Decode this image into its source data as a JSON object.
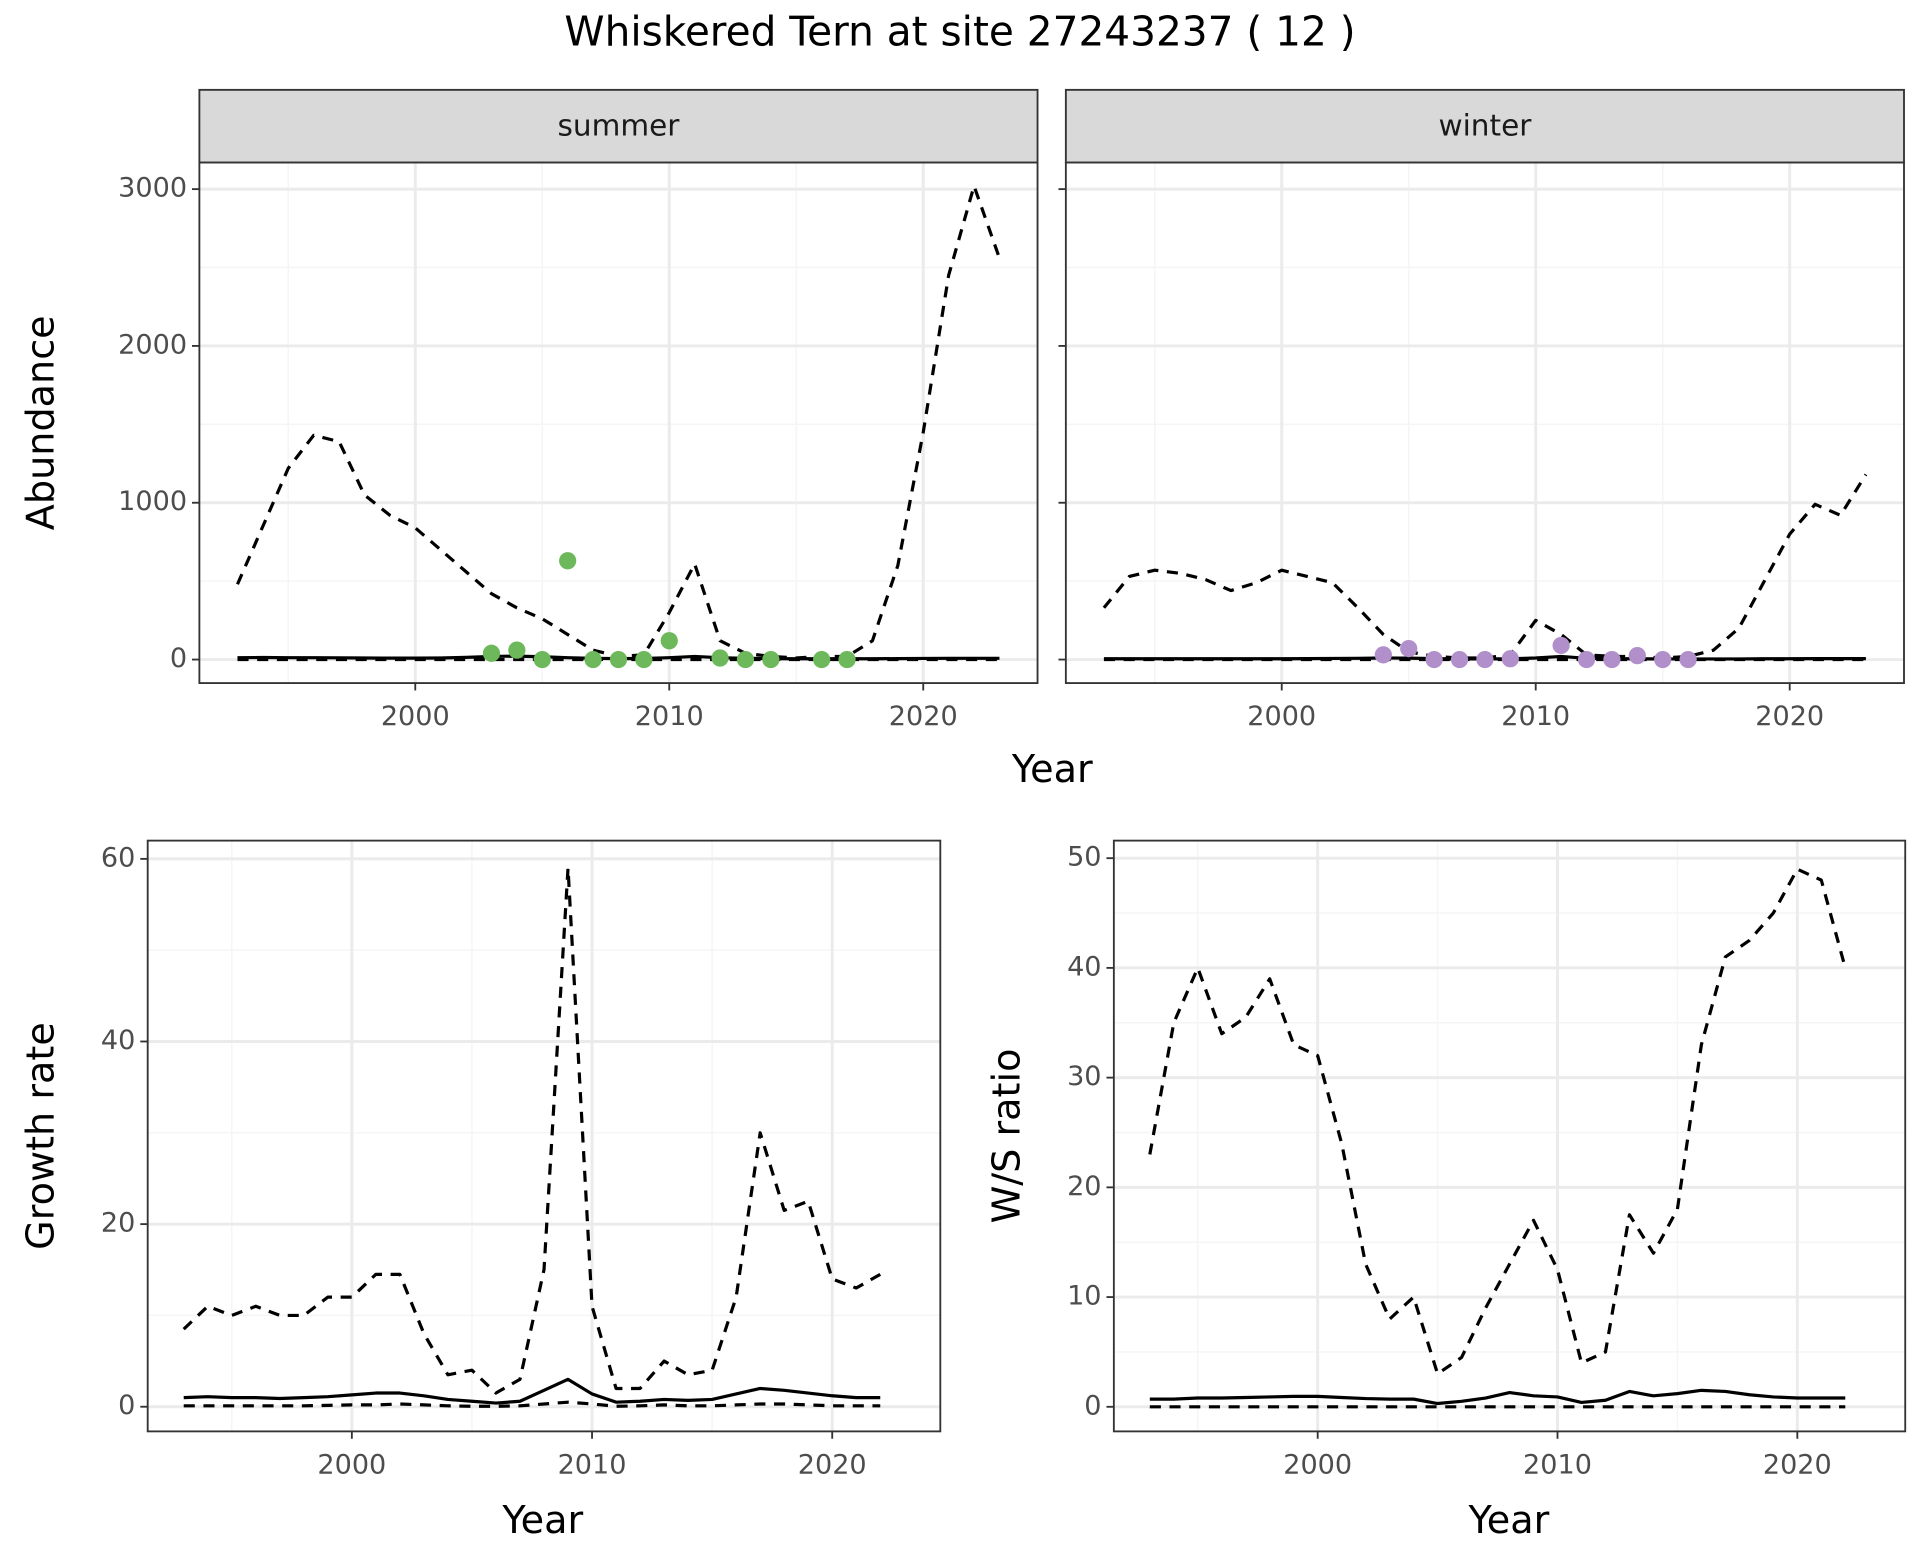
{
  "title": "Whiskered Tern at site 27243237 ( 12 )",
  "chart_data": [
    {
      "type": "line",
      "facet": "summer",
      "ylabel": "Abundance",
      "xlabel": "Year",
      "grid": true,
      "xlim": [
        1991.5,
        2024.5
      ],
      "xticks": [
        2000,
        2010,
        2020
      ],
      "ylim": [
        -150,
        3170
      ],
      "yticks": [
        0,
        1000,
        2000,
        3000
      ],
      "x": [
        1993,
        1994,
        1995,
        1996,
        1997,
        1998,
        1999,
        2000,
        2001,
        2002,
        2003,
        2004,
        2005,
        2006,
        2007,
        2008,
        2009,
        2010,
        2011,
        2012,
        2013,
        2014,
        2015,
        2016,
        2017,
        2018,
        2019,
        2020,
        2021,
        2022,
        2023
      ],
      "series": [
        {
          "color": "#000000",
          "dash": true,
          "values": [
            480,
            850,
            1220,
            1430,
            1390,
            1050,
            920,
            840,
            700,
            560,
            420,
            330,
            260,
            160,
            60,
            20,
            30,
            300,
            610,
            120,
            40,
            20,
            10,
            20,
            20,
            120,
            600,
            1450,
            2450,
            3020,
            2560
          ]
        },
        {
          "color": "#000000",
          "dash": false,
          "values": [
            12,
            13,
            12,
            12,
            11,
            10,
            9,
            9,
            10,
            14,
            20,
            22,
            18,
            12,
            8,
            6,
            7,
            12,
            20,
            12,
            8,
            6,
            5,
            5,
            5,
            5,
            6,
            7,
            8,
            8,
            8
          ]
        },
        {
          "color": "#000000",
          "dash": true,
          "values": [
            0,
            0,
            0,
            0,
            0,
            0,
            0,
            0,
            0,
            0,
            0,
            0,
            0,
            0,
            0,
            0,
            0,
            0,
            0,
            0,
            0,
            0,
            0,
            0,
            0,
            0,
            0,
            0,
            0,
            0,
            0
          ]
        },
        {
          "type": "scatter",
          "color": "#6cb85a",
          "values": [
            null,
            null,
            null,
            null,
            null,
            null,
            null,
            null,
            null,
            null,
            40,
            60,
            0,
            630,
            0,
            0,
            0,
            120,
            null,
            10,
            0,
            0,
            null,
            0,
            0,
            null,
            null,
            null,
            null,
            null,
            null
          ]
        }
      ]
    },
    {
      "type": "line",
      "facet": "winter",
      "ytick_labels": false,
      "grid": true,
      "xlim": [
        1991.5,
        2024.5
      ],
      "xticks": [
        2000,
        2010,
        2020
      ],
      "ylim": [
        -150,
        3170
      ],
      "yticks": [
        0,
        1000,
        2000,
        3000
      ],
      "x": [
        1993,
        1994,
        1995,
        1996,
        1997,
        1998,
        1999,
        2000,
        2001,
        2002,
        2003,
        2004,
        2005,
        2006,
        2007,
        2008,
        2009,
        2010,
        2011,
        2012,
        2013,
        2014,
        2015,
        2016,
        2017,
        2018,
        2019,
        2020,
        2021,
        2022,
        2023
      ],
      "series": [
        {
          "color": "#000000",
          "dash": true,
          "values": [
            330,
            530,
            570,
            550,
            510,
            440,
            490,
            570,
            530,
            490,
            330,
            160,
            50,
            20,
            10,
            10,
            30,
            250,
            160,
            30,
            20,
            20,
            10,
            20,
            60,
            200,
            500,
            800,
            990,
            920,
            1180
          ]
        },
        {
          "color": "#000000",
          "dash": false,
          "values": [
            5,
            5,
            5,
            5,
            5,
            5,
            5,
            5,
            6,
            7,
            8,
            10,
            9,
            6,
            4,
            4,
            5,
            10,
            20,
            8,
            5,
            5,
            4,
            4,
            4,
            4,
            5,
            5,
            6,
            6,
            6
          ]
        },
        {
          "color": "#000000",
          "dash": true,
          "values": [
            0,
            0,
            0,
            0,
            0,
            0,
            0,
            0,
            0,
            0,
            0,
            0,
            0,
            0,
            0,
            0,
            0,
            0,
            0,
            0,
            0,
            0,
            0,
            0,
            0,
            0,
            0,
            0,
            0,
            0,
            0
          ]
        },
        {
          "type": "scatter",
          "color": "#b08fca",
          "values": [
            null,
            null,
            null,
            null,
            null,
            null,
            null,
            null,
            null,
            null,
            null,
            30,
            70,
            0,
            0,
            0,
            5,
            null,
            90,
            0,
            0,
            25,
            0,
            0,
            null,
            null,
            null,
            null,
            null,
            null,
            null
          ]
        }
      ]
    },
    {
      "type": "line",
      "ylabel": "Growth rate",
      "xlabel": "Year",
      "grid": true,
      "xlim": [
        1991.5,
        2024.5
      ],
      "xticks": [
        2000,
        2010,
        2020
      ],
      "ylim": [
        -2.7,
        62
      ],
      "yticks": [
        0,
        20,
        40,
        60
      ],
      "x": [
        1993,
        1994,
        1995,
        1996,
        1997,
        1998,
        1999,
        2000,
        2001,
        2002,
        2003,
        2004,
        2005,
        2006,
        2007,
        2008,
        2009,
        2010,
        2011,
        2012,
        2013,
        2014,
        2015,
        2016,
        2017,
        2018,
        2019,
        2020,
        2021,
        2022
      ],
      "series": [
        {
          "color": "#000000",
          "dash": true,
          "values": [
            8.5,
            11,
            10,
            11,
            10,
            10,
            12,
            12,
            14.5,
            14.5,
            8,
            3.5,
            4,
            1.5,
            3,
            15,
            59,
            11,
            2,
            2,
            5,
            3.5,
            4,
            12,
            30,
            21.5,
            22.5,
            14,
            13,
            14.5
          ]
        },
        {
          "color": "#000000",
          "dash": false,
          "values": [
            1,
            1.1,
            1,
            1,
            0.9,
            1,
            1.1,
            1.3,
            1.5,
            1.5,
            1.2,
            0.8,
            0.6,
            0.4,
            0.6,
            1.8,
            3,
            1.4,
            0.5,
            0.6,
            0.8,
            0.7,
            0.8,
            1.4,
            2,
            1.8,
            1.5,
            1.2,
            1,
            1
          ]
        },
        {
          "color": "#000000",
          "dash": true,
          "values": [
            0.1,
            0.1,
            0.1,
            0.1,
            0.1,
            0.1,
            0.15,
            0.2,
            0.2,
            0.3,
            0.2,
            0.1,
            0.05,
            0.05,
            0.1,
            0.3,
            0.5,
            0.3,
            0.05,
            0.1,
            0.2,
            0.1,
            0.1,
            0.2,
            0.3,
            0.3,
            0.2,
            0.1,
            0.1,
            0.1
          ]
        }
      ]
    },
    {
      "type": "line",
      "ylabel": "W/S ratio",
      "xlabel": "Year",
      "grid": true,
      "xlim": [
        1991.5,
        2024.5
      ],
      "xticks": [
        2000,
        2010,
        2020
      ],
      "ylim": [
        -2.24,
        51.6
      ],
      "yticks": [
        0,
        10,
        20,
        30,
        40,
        50
      ],
      "x": [
        1993,
        1994,
        1995,
        1996,
        1997,
        1998,
        1999,
        2000,
        2001,
        2002,
        2003,
        2004,
        2005,
        2006,
        2007,
        2008,
        2009,
        2010,
        2011,
        2012,
        2013,
        2014,
        2015,
        2016,
        2017,
        2018,
        2019,
        2020,
        2021,
        2022
      ],
      "series": [
        {
          "color": "#000000",
          "dash": true,
          "values": [
            23,
            35,
            40,
            34,
            35.5,
            39,
            33,
            32,
            24,
            13,
            8,
            10,
            3,
            4.5,
            9,
            13,
            17,
            12.5,
            4,
            5,
            17.5,
            14,
            18,
            33,
            41,
            42.5,
            45,
            49,
            48,
            40
          ]
        },
        {
          "color": "#000000",
          "dash": false,
          "values": [
            0.7,
            0.7,
            0.8,
            0.8,
            0.85,
            0.9,
            0.95,
            0.95,
            0.85,
            0.75,
            0.7,
            0.7,
            0.3,
            0.5,
            0.8,
            1.3,
            1,
            0.9,
            0.4,
            0.6,
            1.4,
            1,
            1.2,
            1.5,
            1.4,
            1.1,
            0.9,
            0.8,
            0.8,
            0.8
          ]
        },
        {
          "color": "#000000",
          "dash": true,
          "values": [
            0,
            0,
            0,
            0,
            0,
            0,
            0,
            0,
            0,
            0,
            0,
            0,
            0,
            0,
            0,
            0,
            0,
            0,
            0,
            0,
            0,
            0,
            0,
            0,
            0,
            0,
            0,
            0,
            0,
            0
          ]
        }
      ]
    }
  ]
}
